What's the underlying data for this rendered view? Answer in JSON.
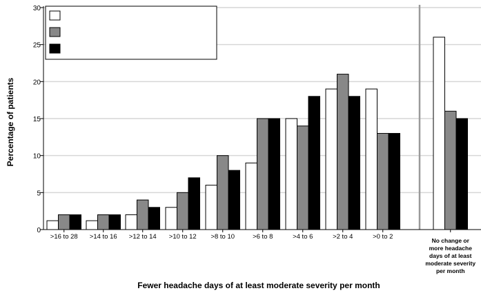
{
  "chart_data": {
    "type": "bar",
    "xlabel": "Fewer headache days of at least moderate severity per month",
    "ylabel": "Percentage of patients",
    "ylim": [
      0,
      30
    ],
    "yticks": [
      "0",
      "5",
      "10",
      "15",
      "20",
      "25",
      "30"
    ],
    "grid": true,
    "legend": "top-left",
    "categories": [
      ">16 to 28",
      ">14 to 16",
      ">12 to 14",
      ">10 to 12",
      ">8 to 10",
      ">6 to 8",
      ">4 to 6",
      ">2 to 4",
      ">0 to 2",
      "No change or more headache days of at least moderate severity per month"
    ],
    "category_label_lines": [
      [
        ">16 to 28"
      ],
      [
        ">14 to 16"
      ],
      [
        ">12 to 14"
      ],
      [
        ">10 to 12"
      ],
      [
        ">8 to 10"
      ],
      [
        ">6 to 8"
      ],
      [
        ">4 to 6"
      ],
      [
        ">2 to 4"
      ],
      [
        ">0 to 2"
      ],
      [
        "No change or",
        "more headache",
        "days of at least",
        "moderate severity",
        "per month"
      ]
    ],
    "series": [
      {
        "name": "",
        "color": "#ffffff",
        "values": [
          1.2,
          1.2,
          2,
          3,
          6,
          9,
          15,
          19,
          19,
          26
        ]
      },
      {
        "name": "",
        "color": "#888888",
        "values": [
          2,
          2,
          4,
          5,
          10,
          15,
          14,
          21,
          13,
          16
        ]
      },
      {
        "name": "",
        "color": "#000000",
        "values": [
          2,
          2,
          3,
          7,
          8,
          15,
          18,
          18,
          13,
          15
        ]
      }
    ]
  }
}
